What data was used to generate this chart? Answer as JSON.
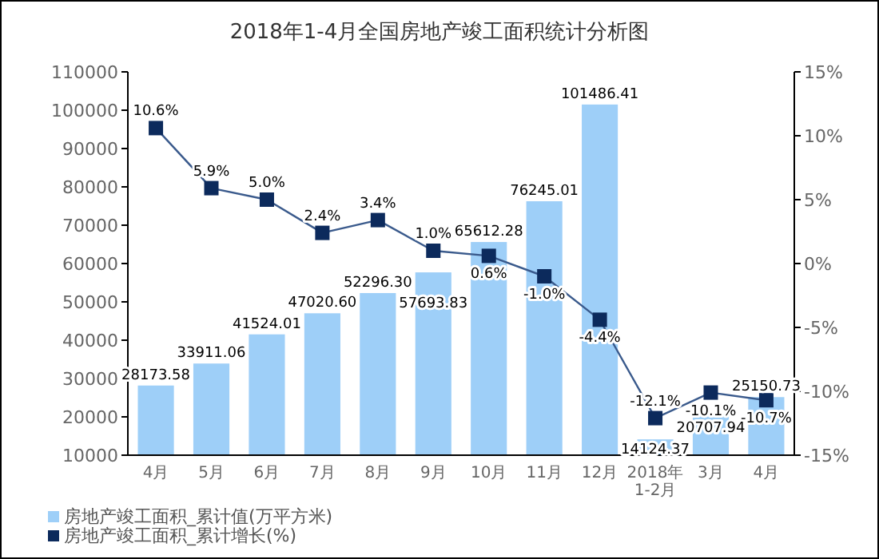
{
  "chart_data": {
    "type": "bar",
    "title": "2018年1-4月全国房地产竣工面积统计分析图",
    "categories": [
      "4月",
      "5月",
      "6月",
      "7月",
      "8月",
      "9月",
      "10月",
      "11月",
      "12月",
      "2018年\n1-2月",
      "3月",
      "4月"
    ],
    "series": [
      {
        "name": "房地产竣工面积_累计值(万平方米)",
        "color": "#9ecff8",
        "values": [
          28173.58,
          33911.06,
          41524.01,
          47020.6,
          52296.3,
          57693.83,
          65612.28,
          76245.01,
          101486.41,
          14124.37,
          20707.94,
          25150.73
        ],
        "value_labels": [
          "28173.58",
          "33911.06",
          "41524.01",
          "47020.60",
          "52296.30",
          "57693.83",
          "65612.28",
          "76245.01",
          "101486.41",
          "14124.37",
          "20707.94",
          "25150.73"
        ]
      },
      {
        "name": "房地产竣工面积_累计增长(%)",
        "type": "line",
        "axis": "y2",
        "color": "#0c2a5c",
        "marker": "square",
        "values": [
          10.6,
          5.9,
          5.0,
          2.4,
          3.4,
          1.0,
          0.6,
          -1.0,
          -4.4,
          -12.1,
          -10.1,
          -10.7
        ],
        "value_labels": [
          "10.6%",
          "5.9%",
          "5.0%",
          "2.4%",
          "3.4%",
          "1.0%",
          "0.6%",
          "-1.0%",
          "-4.4%",
          "-12.1%",
          "-10.1%",
          "-10.7%"
        ]
      }
    ],
    "ylim": [
      10000,
      110000
    ],
    "yticks": [
      10000,
      20000,
      30000,
      40000,
      50000,
      60000,
      70000,
      80000,
      90000,
      100000,
      110000
    ],
    "y2lim": [
      -15,
      15
    ],
    "y2ticks": [
      {
        "value": -15,
        "label": "-15%"
      },
      {
        "value": -10,
        "label": "-10%"
      },
      {
        "value": -5,
        "label": "-5%"
      },
      {
        "value": 0,
        "label": "0%"
      },
      {
        "value": 5,
        "label": "5%"
      },
      {
        "value": 10,
        "label": "10%"
      },
      {
        "value": 15,
        "label": "15%"
      }
    ],
    "legend": "bottom left",
    "grid": false
  }
}
